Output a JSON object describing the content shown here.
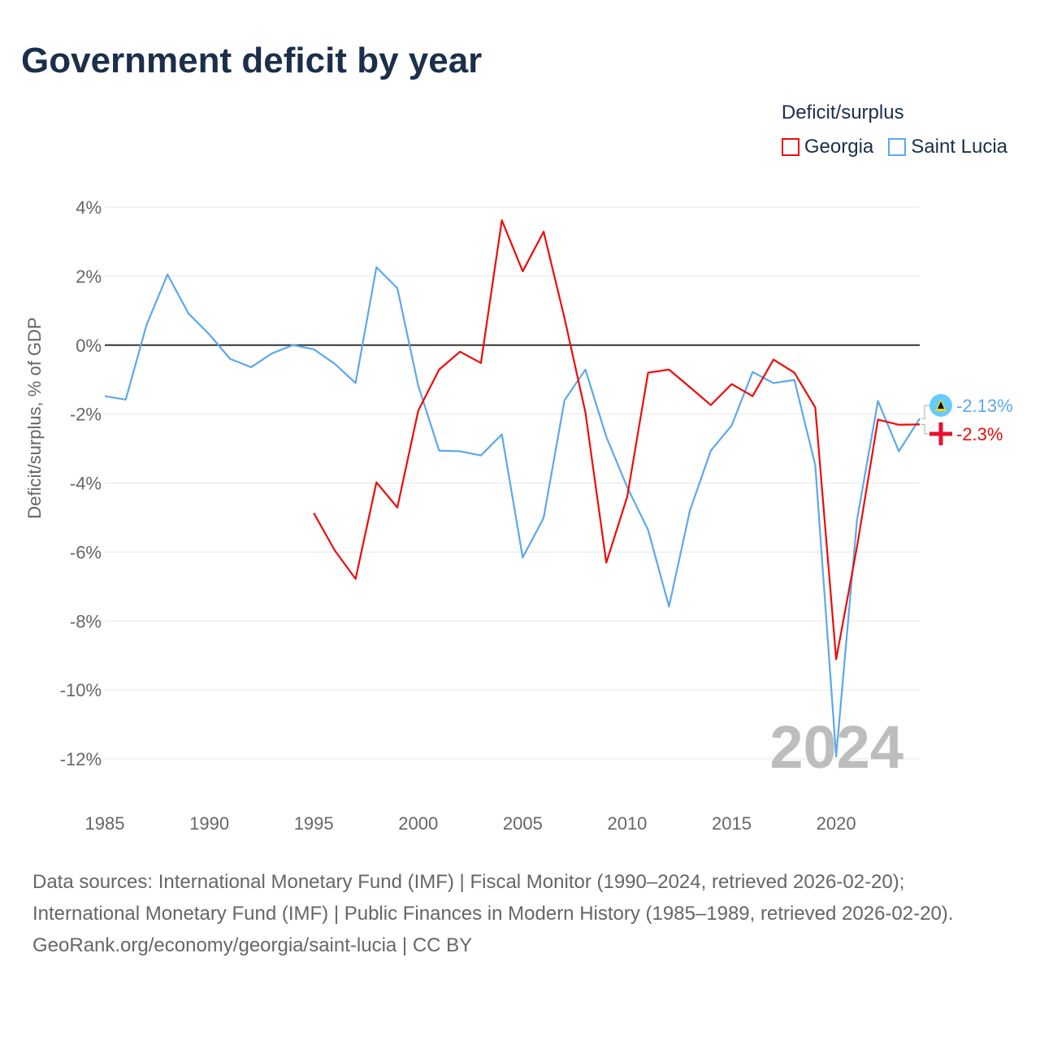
{
  "title": "Government deficit by year",
  "legend": {
    "title": "Deficit/surplus",
    "items": [
      {
        "name": "Georgia",
        "color": "#ee0a0a"
      },
      {
        "name": "Saint Lucia",
        "color": "#5ca8ec"
      }
    ]
  },
  "year_watermark": "2024",
  "chart_data": {
    "type": "line",
    "title": "Government deficit by year",
    "xlabel": "",
    "ylabel": "Deficit/surplus, % of GDP",
    "xlim": [
      1985,
      2024
    ],
    "ylim": [
      -12,
      4
    ],
    "x_ticks": [
      1985,
      1990,
      1995,
      2000,
      2005,
      2010,
      2015,
      2020
    ],
    "x_tick_labels": [
      "1985",
      "1990",
      "1995",
      "2000",
      "2005",
      "2010",
      "2015",
      "2020"
    ],
    "y_ticks": [
      4,
      2,
      0,
      -2,
      -4,
      -6,
      -8,
      -10,
      -12
    ],
    "y_tick_labels": [
      "4%",
      "2%",
      "0%",
      "-2%",
      "-4%",
      "-6%",
      "-8%",
      "-10%",
      "-12%"
    ],
    "grid": true,
    "legend_position": "top-right",
    "series": [
      {
        "name": "Georgia",
        "color": "#ee0a0a",
        "end_label": "-2.3%",
        "x": [
          1995,
          1996,
          1997,
          1998,
          1999,
          2000,
          2001,
          2002,
          2003,
          2004,
          2005,
          2006,
          2007,
          2008,
          2009,
          2010,
          2011,
          2012,
          2013,
          2014,
          2015,
          2016,
          2017,
          2018,
          2019,
          2020,
          2021,
          2022,
          2023,
          2024
        ],
        "values": [
          -4.87,
          -5.95,
          -6.78,
          -3.98,
          -4.71,
          -1.9,
          -0.71,
          -0.19,
          -0.52,
          3.62,
          2.14,
          3.29,
          0.78,
          -1.95,
          -6.31,
          -4.4,
          -0.8,
          -0.71,
          -1.22,
          -1.74,
          -1.13,
          -1.48,
          -0.42,
          -0.8,
          -1.81,
          -9.11,
          -5.84,
          -2.16,
          -2.31,
          -2.3
        ]
      },
      {
        "name": "Saint Lucia",
        "color": "#5ca8ec",
        "end_label": "-2.13%",
        "x": [
          1985,
          1986,
          1987,
          1988,
          1989,
          1990,
          1991,
          1992,
          1993,
          1994,
          1995,
          1996,
          1997,
          1998,
          1999,
          2000,
          2001,
          2002,
          2003,
          2004,
          2005,
          2006,
          2007,
          2008,
          2009,
          2010,
          2011,
          2012,
          2013,
          2014,
          2015,
          2016,
          2017,
          2018,
          2019,
          2020,
          2021,
          2022,
          2023,
          2024
        ],
        "values": [
          -1.48,
          -1.58,
          0.59,
          2.05,
          0.92,
          0.31,
          -0.4,
          -0.64,
          -0.24,
          0.0,
          -0.12,
          -0.54,
          -1.1,
          2.26,
          1.65,
          -1.18,
          -3.06,
          -3.08,
          -3.2,
          -2.59,
          -6.16,
          -5.01,
          -1.6,
          -0.71,
          -2.66,
          -4.12,
          -5.36,
          -7.58,
          -4.8,
          -3.06,
          -2.33,
          -0.78,
          -1.1,
          -1.01,
          -3.48,
          -11.93,
          -5.06,
          -1.62,
          -3.08,
          -2.13
        ]
      }
    ]
  },
  "footer": {
    "line1": "Data sources: International Monetary Fund (IMF) | Fiscal Monitor (1990–2024, retrieved 2026-02-20); International Monetary Fund (IMF) | Public Finances in Modern History (1985–1989, retrieved 2026-02-20).",
    "line2": "GeoRank.org/economy/georgia/saint-lucia | CC BY"
  }
}
